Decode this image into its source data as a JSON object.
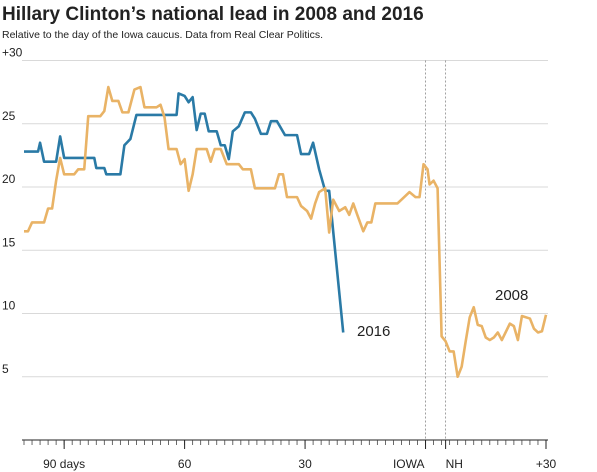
{
  "chart_data": {
    "type": "line",
    "title": "Hillary Clinton’s national lead in 2008 and 2016",
    "subtitle": "Relative to the day of the Iowa caucus. Data from Real Clear Politics.",
    "xlim": [
      -100,
      30
    ],
    "xticks": [
      {
        "value": -90,
        "label": "90 days"
      },
      {
        "value": -60,
        "label": "60"
      },
      {
        "value": -30,
        "label": "30"
      },
      {
        "value": 0,
        "label": "IOWA"
      },
      {
        "value": 5,
        "label": "NH"
      },
      {
        "value": 30,
        "label": "+30"
      }
    ],
    "ylim": [
      0,
      30
    ],
    "yticks": [
      5,
      10,
      15,
      20,
      25,
      {
        "value": 30,
        "label": "+30"
      }
    ],
    "grid": true,
    "series": [
      {
        "name": "2016",
        "color": "#2a7aa6",
        "x": [
          -100,
          -96.5,
          -96,
          -95,
          -92,
          -91,
          -90,
          -82.5,
          -82,
          -80,
          -79.5,
          -76,
          -75,
          -73.5,
          -72,
          -62,
          -61.5,
          -60,
          -59,
          -58,
          -57,
          -56,
          -55,
          -54,
          -52,
          -51,
          -50,
          -49,
          -48,
          -46.5,
          -45,
          -43.5,
          -42.5,
          -41,
          -39.5,
          -38.5,
          -37,
          -35,
          -32,
          -31,
          -29,
          -28,
          -26.5,
          -25,
          -24,
          -20.5
        ],
        "values": [
          22.8,
          22.8,
          23.5,
          22,
          22,
          24,
          22.3,
          22.3,
          21.5,
          21.5,
          21,
          21,
          23.3,
          23.8,
          25.7,
          25.7,
          27.4,
          27.2,
          26.7,
          27.1,
          24.5,
          25.8,
          25.8,
          24.4,
          24.4,
          23.3,
          23.3,
          22.2,
          24.4,
          24.8,
          25.9,
          25.9,
          25.4,
          24.2,
          24.2,
          25.2,
          25.2,
          24.1,
          24.1,
          22.6,
          22.6,
          23.5,
          21.4,
          19.7,
          19.7,
          8.5
        ]
      },
      {
        "name": "2008",
        "color": "#e9b366",
        "x": [
          -100,
          -99,
          -98,
          -95,
          -94,
          -93,
          -92,
          -91,
          -90,
          -87.5,
          -86.5,
          -85,
          -84,
          -81,
          -80,
          -79,
          -78,
          -76.5,
          -75.5,
          -74,
          -72.5,
          -71,
          -70,
          -67,
          -66,
          -65,
          -64,
          -62,
          -61,
          -60,
          -59,
          -58,
          -57,
          -54.5,
          -53.5,
          -52.5,
          -51,
          -49.5,
          -46.5,
          -45.5,
          -43.5,
          -42.5,
          -37.5,
          -36.5,
          -35.5,
          -34.5,
          -32,
          -31,
          -29.5,
          -28.5,
          -27.5,
          -26.5,
          -25,
          -24,
          -23,
          -21.5,
          -20,
          -19,
          -18,
          -17,
          -15.5,
          -14.5,
          -13.5,
          -12.5,
          -7,
          -6,
          -4,
          -2.5,
          -1.5,
          -0.5,
          0.5,
          1,
          2,
          3,
          4,
          5,
          6,
          7,
          8,
          9,
          10,
          11,
          12,
          13,
          14,
          15,
          16,
          17,
          18,
          19,
          21,
          22,
          23,
          24,
          26,
          27,
          28,
          29,
          30
        ],
        "values": [
          16.5,
          16.5,
          17.2,
          17.2,
          18.3,
          18.3,
          20.5,
          22.3,
          21,
          21,
          21.4,
          21.4,
          25.6,
          25.6,
          26,
          27.9,
          26.8,
          26.8,
          25.9,
          25.9,
          27.7,
          27.9,
          26.3,
          26.3,
          26.5,
          25.5,
          23,
          23,
          21.8,
          22.2,
          19.7,
          21,
          23,
          23,
          22,
          23,
          23,
          21.8,
          21.8,
          21.4,
          21.4,
          19.9,
          19.9,
          21,
          21,
          19.2,
          19.2,
          18.5,
          18.1,
          17.5,
          18.7,
          19.6,
          19.9,
          16.4,
          19,
          18.1,
          18.4,
          17.8,
          18.7,
          17.8,
          16.5,
          17.2,
          17.2,
          18.7,
          18.7,
          19,
          19.6,
          19.2,
          19.2,
          21.8,
          21.4,
          20.2,
          20.5,
          19.9,
          8.2,
          7.8,
          7,
          7,
          5,
          5.8,
          7.8,
          9.7,
          10.5,
          9.1,
          9,
          8.1,
          7.9,
          8.1,
          8.5,
          7.9,
          9.2,
          9,
          7.9,
          9.8,
          9.6,
          8.8,
          8.5,
          8.6,
          9.9
        ]
      }
    ]
  }
}
